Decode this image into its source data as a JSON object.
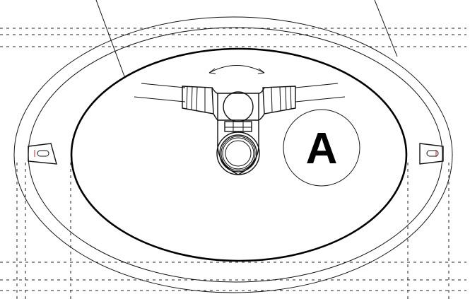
{
  "diagram": {
    "callout": {
      "label": "A"
    }
  }
}
